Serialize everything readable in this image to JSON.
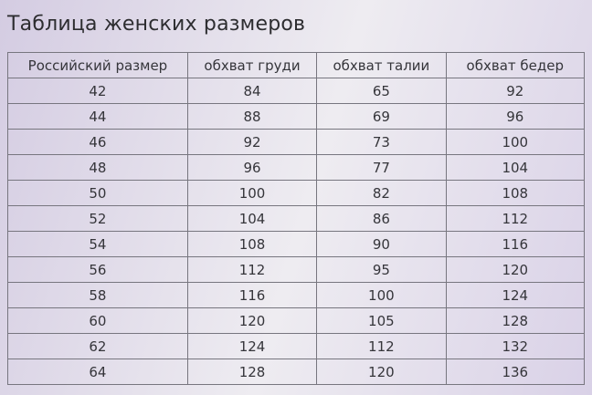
{
  "page": {
    "title": "Таблица женских размеров"
  },
  "table": {
    "columns": [
      "Российский размер",
      "обхват груди",
      "обхват талии",
      "обхват бедер"
    ],
    "rows": [
      [
        "42",
        "84",
        "65",
        "92"
      ],
      [
        "44",
        "88",
        "69",
        "96"
      ],
      [
        "46",
        "92",
        "73",
        "100"
      ],
      [
        "48",
        "96",
        "77",
        "104"
      ],
      [
        "50",
        "100",
        "82",
        "108"
      ],
      [
        "52",
        "104",
        "86",
        "112"
      ],
      [
        "54",
        "108",
        "90",
        "116"
      ],
      [
        "56",
        "112",
        "95",
        "120"
      ],
      [
        "58",
        "116",
        "100",
        "124"
      ],
      [
        "60",
        "120",
        "105",
        "128"
      ],
      [
        "62",
        "124",
        "112",
        "132"
      ],
      [
        "64",
        "128",
        "120",
        "136"
      ]
    ]
  },
  "colors": {
    "background_lavender_left": "#d4cce2",
    "background_light_band": "#eeecf1",
    "background_lavender_right": "#d9d1e7",
    "table_border": "#77767f",
    "text": "#35353a"
  }
}
